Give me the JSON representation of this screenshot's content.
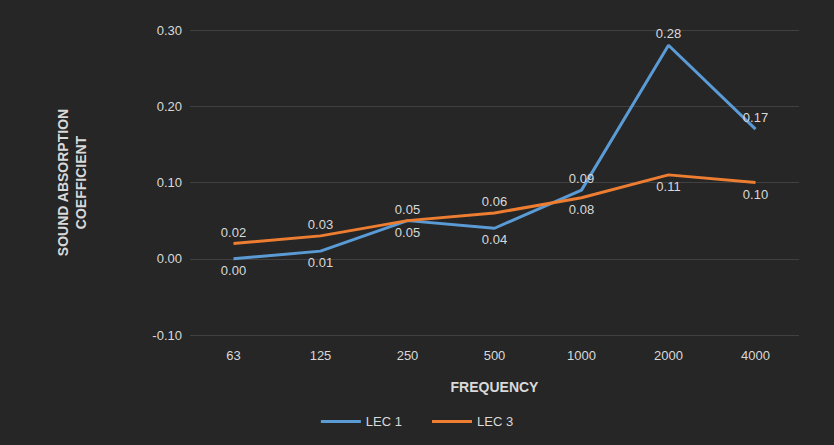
{
  "chart_data": {
    "type": "line",
    "x_label": "FREQUENCY",
    "y_label": "SOUND ABSORPTION\nCOEFFICIENT",
    "categories": [
      "63",
      "125",
      "250",
      "500",
      "1000",
      "2000",
      "4000"
    ],
    "series": [
      {
        "name": "LEC 1",
        "color": "#5b9bd5",
        "values": [
          0.0,
          0.01,
          0.05,
          0.04,
          0.09,
          0.28,
          0.17
        ],
        "value_labels": [
          "0.00",
          "0.01",
          "0.05",
          "0.04",
          "0.09",
          "0.28",
          "0.17"
        ]
      },
      {
        "name": "LEC 3",
        "color": "#ed7d31",
        "values": [
          0.02,
          0.03,
          0.05,
          0.06,
          0.08,
          0.11,
          0.1
        ],
        "value_labels": [
          "0.02",
          "0.03",
          "0.05",
          "0.06",
          "0.08",
          "0.11",
          "0.10"
        ]
      }
    ],
    "ylim": [
      -0.1,
      0.3
    ],
    "yticks": [
      {
        "value": -0.1,
        "label": "-0.10"
      },
      {
        "value": 0,
        "label": "0.00"
      },
      {
        "value": 0.1,
        "label": "0.10"
      },
      {
        "value": 0.2,
        "label": "0.20"
      },
      {
        "value": 0.3,
        "label": "0.30"
      }
    ],
    "grid": true,
    "legend": "bottom",
    "data_labels": true
  }
}
